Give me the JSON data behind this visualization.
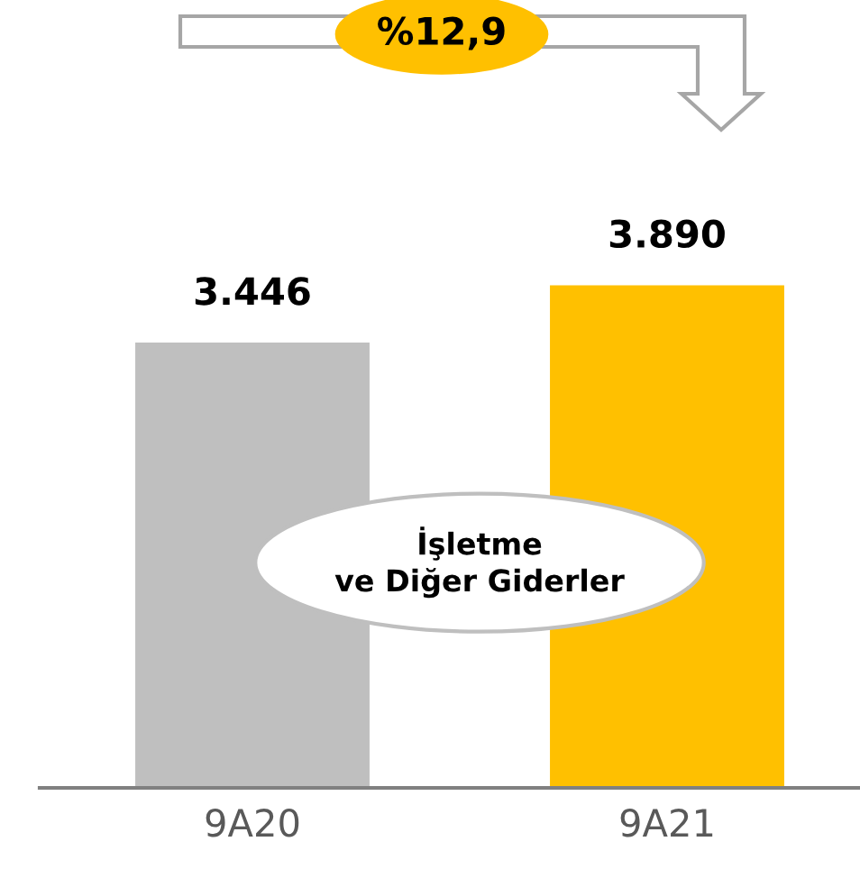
{
  "chart_data": {
    "type": "bar",
    "categories": [
      "9A20",
      "9A21"
    ],
    "values": [
      3446,
      3890
    ],
    "colors": [
      "#bfbfbf",
      "#ffc000"
    ],
    "value_labels": [
      "3.446",
      "3.890"
    ],
    "tick_labels": "x",
    "grid": false,
    "annotations": [
      "%12,9",
      "İşletme\nve Diğer Giderler"
    ]
  }
}
